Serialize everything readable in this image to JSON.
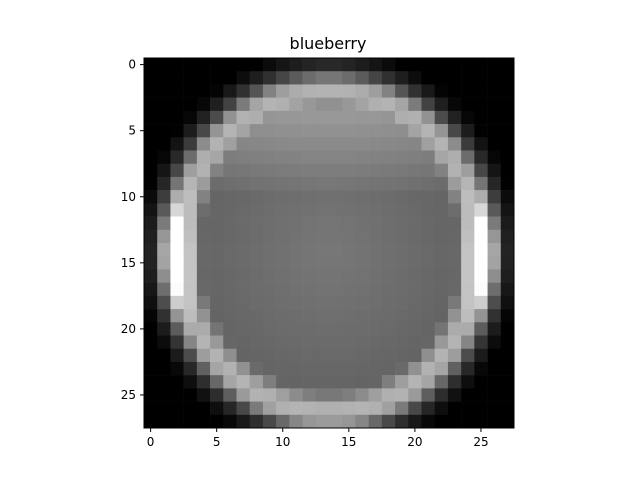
{
  "chart_data": {
    "type": "heatmap",
    "title": "blueberry",
    "xlabel": "",
    "ylabel": "",
    "colormap": "gray",
    "rows": 28,
    "cols": 28,
    "xlim": [
      -0.5,
      27.5
    ],
    "ylim": [
      27.5,
      -0.5
    ],
    "x_ticks": [
      0,
      5,
      10,
      15,
      20,
      25
    ],
    "y_ticks": [
      0,
      5,
      10,
      15,
      20,
      25
    ],
    "grid": false,
    "legend": "none",
    "image_description": "28x28 grayscale image; bright ring (blueberry outline) on black background with mid-gray interior; brightest on left and right edges near row 14",
    "values_note": "brightness 0-255 approximated"
  }
}
